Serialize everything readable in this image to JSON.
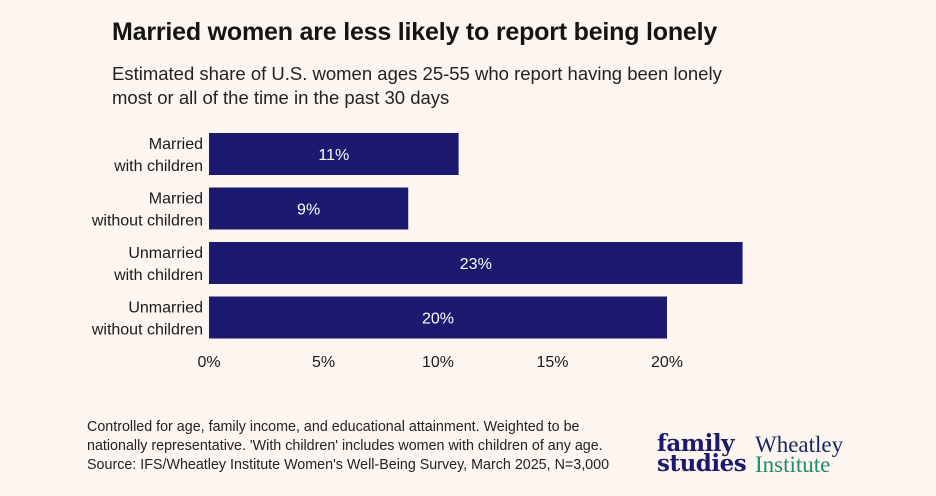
{
  "title": "Married women are less likely to report being lonely",
  "subtitle": "Estimated share of U.S. women ages 25-55 who report having been lonely most or all of the time in the past 30 days",
  "footnote": [
    "Controlled for age, family income, and educational attainment. Weighted to be",
    "nationally representative. 'With children' includes women with children of any age.",
    "Source: IFS/Wheatley Institute Women's Well-Being Survey, March 2025, N=3,000"
  ],
  "logos": {
    "family_studies": [
      "family",
      "studies"
    ],
    "wheatley": [
      "Wheatley",
      "Institute"
    ]
  },
  "colors": {
    "bar": "#1c1a6e",
    "bar_label": "#ffffff",
    "background": "#fdf6f0",
    "wheatley_navy": "#16265f",
    "wheatley_green": "#1e8a6e"
  },
  "chart_data": {
    "type": "bar",
    "orientation": "horizontal",
    "categories": [
      [
        "Married",
        "with children"
      ],
      [
        "Married",
        "without children"
      ],
      [
        "Unmarried",
        "with children"
      ],
      [
        "Unmarried",
        "without children"
      ]
    ],
    "values": [
      10.9,
      8.7,
      23.3,
      20.0
    ],
    "value_labels": [
      "11%",
      "9%",
      "23%",
      "20%"
    ],
    "xlim": [
      0,
      23.3
    ],
    "x_ticks": [
      0,
      5,
      10,
      15,
      20
    ],
    "x_tick_labels": [
      "0%",
      "5%",
      "10%",
      "15%",
      "20%"
    ],
    "grid": false,
    "legend": "none"
  }
}
